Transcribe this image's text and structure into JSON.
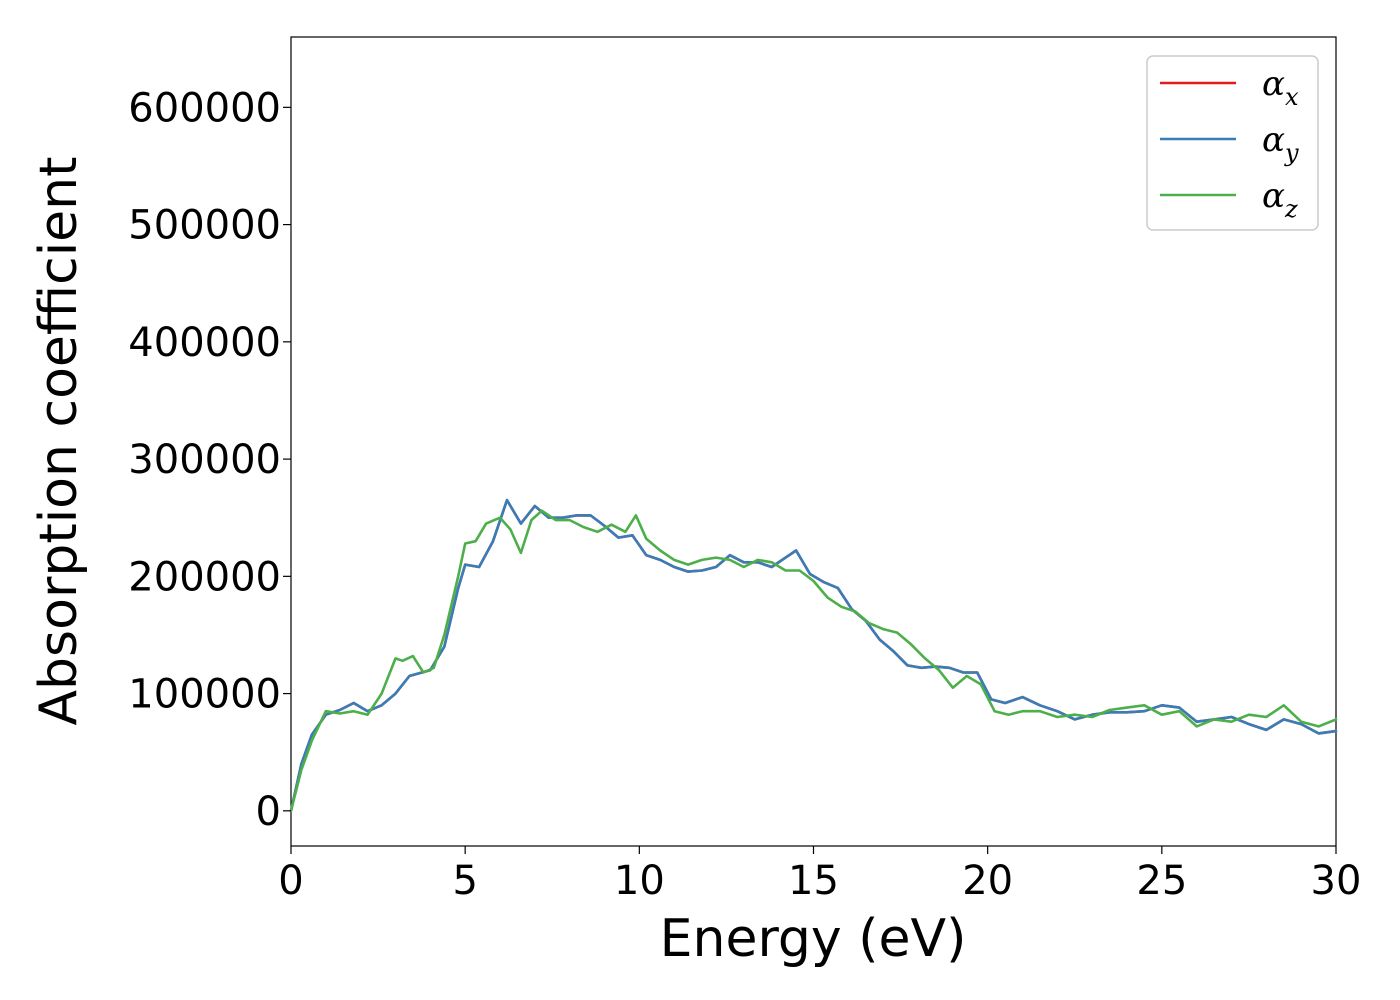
{
  "chart_data": {
    "type": "line",
    "xlabel": "Energy (eV)",
    "ylabel": "Absorption coefficient",
    "xlim": [
      0,
      30
    ],
    "ylim": [
      -30000,
      660000
    ],
    "xticks": [
      0,
      5,
      10,
      15,
      20,
      25,
      30
    ],
    "yticks": [
      0,
      100000,
      200000,
      300000,
      400000,
      500000,
      600000
    ],
    "grid": false,
    "legend_position": "top-right",
    "series": [
      {
        "name": "α",
        "subscript": "x",
        "color": "#e41a1c",
        "x": [
          0,
          0.3,
          0.6,
          1.0,
          1.4,
          1.8,
          2.2,
          2.6,
          3.0,
          3.4,
          4.0,
          4.4,
          4.8,
          5.0,
          5.4,
          5.8,
          6.2,
          6.6,
          7.0,
          7.4,
          7.8,
          8.2,
          8.6,
          9.0,
          9.4,
          9.8,
          10.2,
          10.6,
          11.0,
          11.4,
          11.8,
          12.2,
          12.6,
          13.0,
          13.4,
          13.8,
          14.2,
          14.5,
          14.9,
          15.3,
          15.7,
          16.1,
          16.5,
          16.9,
          17.3,
          17.7,
          18.1,
          18.5,
          18.9,
          19.3,
          19.7,
          20.1,
          20.5,
          21.0,
          21.5,
          22.0,
          22.5,
          23.0,
          23.5,
          24.0,
          24.5,
          25.0,
          25.5,
          26.0,
          26.5,
          27.0,
          27.5,
          28.0,
          28.5,
          29.0,
          29.5,
          30.0
        ],
        "y": [
          0,
          40000,
          65000,
          82000,
          86000,
          92000,
          85000,
          90000,
          100000,
          115000,
          120000,
          140000,
          190000,
          210000,
          208000,
          230000,
          265000,
          245000,
          260000,
          250000,
          250000,
          252000,
          252000,
          243000,
          233000,
          235000,
          218000,
          214000,
          208000,
          204000,
          205000,
          208000,
          218000,
          212000,
          212000,
          208000,
          216000,
          222000,
          202000,
          195000,
          190000,
          172000,
          162000,
          146000,
          136000,
          124000,
          122000,
          123000,
          122000,
          118000,
          118000,
          95000,
          92000,
          97000,
          90000,
          85000,
          78000,
          82000,
          84000,
          84000,
          85000,
          90000,
          88000,
          76000,
          78000,
          80000,
          74000,
          69000,
          78000,
          74000,
          66000,
          68000
        ]
      },
      {
        "name": "α",
        "subscript": "y",
        "color": "#377eb8",
        "x": [
          0,
          0.3,
          0.6,
          1.0,
          1.4,
          1.8,
          2.2,
          2.6,
          3.0,
          3.4,
          4.0,
          4.4,
          4.8,
          5.0,
          5.4,
          5.8,
          6.2,
          6.6,
          7.0,
          7.4,
          7.8,
          8.2,
          8.6,
          9.0,
          9.4,
          9.8,
          10.2,
          10.6,
          11.0,
          11.4,
          11.8,
          12.2,
          12.6,
          13.0,
          13.4,
          13.8,
          14.2,
          14.5,
          14.9,
          15.3,
          15.7,
          16.1,
          16.5,
          16.9,
          17.3,
          17.7,
          18.1,
          18.5,
          18.9,
          19.3,
          19.7,
          20.1,
          20.5,
          21.0,
          21.5,
          22.0,
          22.5,
          23.0,
          23.5,
          24.0,
          24.5,
          25.0,
          25.5,
          26.0,
          26.5,
          27.0,
          27.5,
          28.0,
          28.5,
          29.0,
          29.5,
          30.0
        ],
        "y": [
          0,
          40000,
          65000,
          82000,
          86000,
          92000,
          85000,
          90000,
          100000,
          115000,
          120000,
          140000,
          190000,
          210000,
          208000,
          230000,
          265000,
          245000,
          260000,
          250000,
          250000,
          252000,
          252000,
          243000,
          233000,
          235000,
          218000,
          214000,
          208000,
          204000,
          205000,
          208000,
          218000,
          212000,
          212000,
          208000,
          216000,
          222000,
          202000,
          195000,
          190000,
          172000,
          162000,
          146000,
          136000,
          124000,
          122000,
          123000,
          122000,
          118000,
          118000,
          95000,
          92000,
          97000,
          90000,
          85000,
          78000,
          82000,
          84000,
          84000,
          85000,
          90000,
          88000,
          76000,
          78000,
          80000,
          74000,
          69000,
          78000,
          74000,
          66000,
          68000
        ]
      },
      {
        "name": "α",
        "subscript": "z",
        "color": "#4daf4a",
        "x": [
          0,
          0.3,
          0.6,
          1.0,
          1.4,
          1.8,
          2.2,
          2.6,
          3.0,
          3.2,
          3.5,
          3.8,
          4.1,
          4.4,
          4.8,
          5.0,
          5.3,
          5.6,
          6.0,
          6.3,
          6.6,
          6.9,
          7.2,
          7.6,
          8.0,
          8.4,
          8.8,
          9.2,
          9.6,
          9.9,
          10.2,
          10.6,
          11.0,
          11.4,
          11.8,
          12.2,
          12.6,
          13.0,
          13.4,
          13.8,
          14.2,
          14.6,
          15.0,
          15.4,
          15.8,
          16.2,
          16.6,
          17.0,
          17.4,
          17.8,
          18.2,
          18.6,
          19.0,
          19.4,
          19.8,
          20.2,
          20.6,
          21.0,
          21.5,
          22.0,
          22.5,
          23.0,
          23.5,
          24.0,
          24.5,
          25.0,
          25.5,
          26.0,
          26.5,
          27.0,
          27.5,
          28.0,
          28.5,
          29.0,
          29.5,
          30.0
        ],
        "y": [
          0,
          35000,
          60000,
          85000,
          83000,
          85000,
          82000,
          100000,
          130000,
          128000,
          132000,
          118000,
          122000,
          150000,
          200000,
          228000,
          230000,
          245000,
          250000,
          240000,
          220000,
          248000,
          256000,
          248000,
          248000,
          242000,
          238000,
          244000,
          238000,
          252000,
          232000,
          222000,
          214000,
          210000,
          214000,
          216000,
          214000,
          208000,
          214000,
          212000,
          205000,
          205000,
          196000,
          182000,
          174000,
          170000,
          160000,
          155000,
          152000,
          142000,
          130000,
          120000,
          105000,
          115000,
          108000,
          85000,
          82000,
          85000,
          85000,
          80000,
          82000,
          80000,
          86000,
          88000,
          90000,
          82000,
          85000,
          72000,
          78000,
          76000,
          82000,
          80000,
          90000,
          76000,
          72000,
          78000
        ]
      }
    ]
  }
}
